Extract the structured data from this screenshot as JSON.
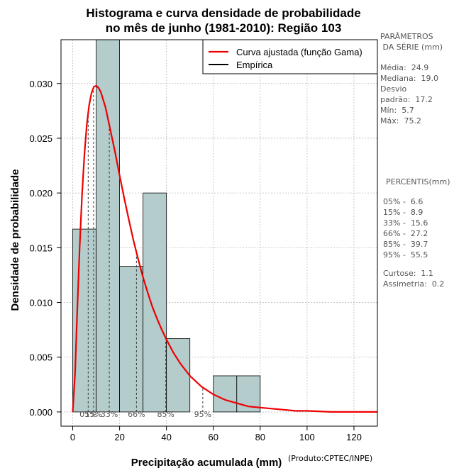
{
  "chart_data": {
    "type": "histogram",
    "title": [
      "Histograma e curva densidade de probabilidade",
      "no mês de junho (1981-2010): Região 103"
    ],
    "xlabel": "Precipitação acumulada (mm)",
    "ylabel": "Densidade de probabilidade",
    "xlim": [
      -5,
      130
    ],
    "ylim": [
      -0.0013,
      0.034
    ],
    "x_ticks": [
      0,
      20,
      40,
      60,
      80,
      100,
      120
    ],
    "x_tick_labels": [
      "0",
      "20",
      "40",
      "60",
      "80",
      "100",
      "120"
    ],
    "y_ticks": [
      0.0,
      0.005,
      0.01,
      0.015,
      0.02,
      0.025,
      0.03
    ],
    "y_tick_labels": [
      "0.000",
      "0.005",
      "0.010",
      "0.015",
      "0.020",
      "0.025",
      "0.030"
    ],
    "grid": true,
    "bars": [
      {
        "start": 0,
        "end": 10,
        "density": 0.0167
      },
      {
        "start": 10,
        "end": 20,
        "density": 0.0343
      },
      {
        "start": 20,
        "end": 30,
        "density": 0.0133
      },
      {
        "start": 30,
        "end": 40,
        "density": 0.02
      },
      {
        "start": 40,
        "end": 50,
        "density": 0.0067
      },
      {
        "start": 50,
        "end": 60,
        "density": 0.0
      },
      {
        "start": 60,
        "end": 70,
        "density": 0.0033
      },
      {
        "start": 70,
        "end": 80,
        "density": 0.0033
      }
    ],
    "curve": {
      "name": "Curva ajustada (função Gama)",
      "x": [
        0,
        1,
        2,
        3,
        4,
        5,
        6,
        7,
        8,
        9,
        10,
        11,
        12,
        13,
        14,
        16,
        18,
        20,
        22,
        24,
        26,
        28,
        30,
        32,
        34,
        36,
        38,
        40,
        43,
        46,
        50,
        55,
        60,
        65,
        70,
        75,
        80,
        85,
        90,
        95,
        100,
        110,
        120,
        130
      ],
      "y": [
        0.0,
        0.0035,
        0.0096,
        0.0152,
        0.0199,
        0.0235,
        0.0262,
        0.028,
        0.0291,
        0.0297,
        0.0298,
        0.0296,
        0.0292,
        0.0285,
        0.0278,
        0.0258,
        0.0238,
        0.0216,
        0.0195,
        0.0175,
        0.0156,
        0.0139,
        0.0123,
        0.0109,
        0.0096,
        0.0085,
        0.0075,
        0.0066,
        0.0054,
        0.0044,
        0.0033,
        0.0023,
        0.0016,
        0.0011,
        0.0008,
        0.0005,
        0.0004,
        0.0003,
        0.0002,
        0.0001,
        0.0001,
        0.0,
        0.0,
        0.0
      ]
    },
    "empirica_label": "Empírica",
    "percentile_lines": [
      {
        "label": "05%",
        "x": 6.6
      },
      {
        "label": "15%",
        "x": 8.9
      },
      {
        "label": "33%",
        "x": 15.6
      },
      {
        "label": "66%",
        "x": 27.2
      },
      {
        "label": "85%",
        "x": 39.7
      },
      {
        "label": "95%",
        "x": 55.5
      }
    ],
    "legend_placement": "top-right",
    "colors": {
      "bar_fill": "#b4cccc",
      "curve": "#ee0000",
      "grid": "#bbbbbb"
    }
  },
  "side_panel": {
    "params_title": "PARÂMETROS\n DA SÉRIE (mm)",
    "params": "Média:  24.9\nMediana:  19.0\nDesvio\npadrão:  17.2\nMín:  5.7\nMáx:  75.2",
    "percentis_title": "PERCENTIS(mm)",
    "percentis": "05% -  6.6\n15% -  8.9\n33% -  15.6\n66% -  27.2\n85% -  39.7\n95% -  55.5",
    "stats": "Curtose:  1.1\nAssimetria:  0.2"
  },
  "credit": "(Produto:CPTEC/INPE)"
}
